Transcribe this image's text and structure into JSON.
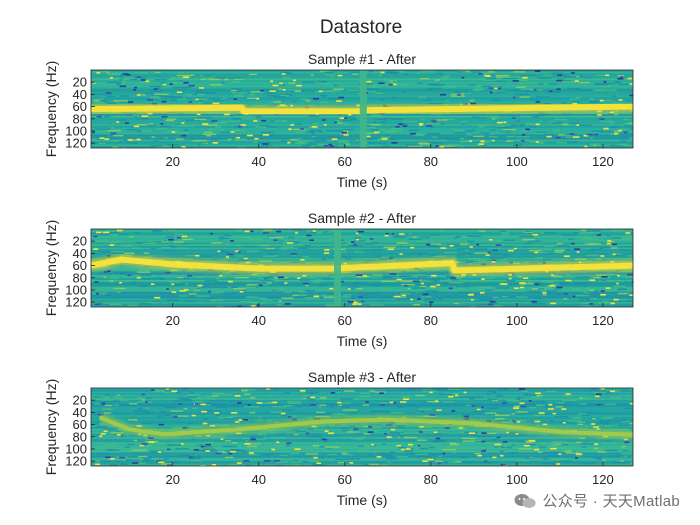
{
  "figure": {
    "title": "Datastore"
  },
  "chart_data": [
    {
      "type": "heatmap",
      "title": "Sample #1 - After",
      "xlabel": "Time (s)",
      "ylabel": "Frequency (Hz)",
      "xlim": [
        1,
        127
      ],
      "ylim": [
        0,
        128
      ],
      "y_direction": "reversed",
      "xticks": [
        20,
        40,
        60,
        80,
        100,
        120
      ],
      "yticks": [
        20,
        40,
        60,
        80,
        100,
        120
      ],
      "ridge": {
        "t": [
          1,
          36,
          36.5,
          64,
          64.5,
          127
        ],
        "freq": [
          64,
          62,
          68,
          68,
          66,
          60
        ]
      },
      "gaps": [
        63.5
      ]
    },
    {
      "type": "heatmap",
      "title": "Sample #2 - After",
      "xlabel": "Time (s)",
      "ylabel": "Frequency (Hz)",
      "xlim": [
        1,
        127
      ],
      "ylim": [
        0,
        128
      ],
      "y_direction": "reversed",
      "xticks": [
        20,
        40,
        60,
        80,
        100,
        120
      ],
      "yticks": [
        20,
        40,
        60,
        80,
        100,
        120
      ],
      "ridge": {
        "t": [
          1,
          8,
          20,
          40,
          57,
          85,
          85.5,
          127
        ],
        "freq": [
          60,
          50,
          58,
          65,
          65,
          56,
          68,
          60
        ]
      },
      "gaps": [
        57.5
      ]
    },
    {
      "type": "heatmap",
      "title": "Sample #3 - After",
      "xlabel": "Time (s)",
      "ylabel": "Frequency (Hz)",
      "xlim": [
        1,
        127
      ],
      "ylim": [
        0,
        128
      ],
      "y_direction": "reversed",
      "xticks": [
        20,
        40,
        60,
        80,
        100,
        120
      ],
      "yticks": [
        20,
        40,
        60,
        80,
        100,
        120
      ],
      "ridge": {
        "t": [
          3,
          10,
          18,
          35,
          55,
          70,
          90,
          110,
          127
        ],
        "freq": [
          48,
          68,
          76,
          68,
          55,
          52,
          58,
          72,
          77
        ]
      },
      "gaps": []
    }
  ],
  "watermark": {
    "text": "公众号 · 天天Matlab"
  }
}
